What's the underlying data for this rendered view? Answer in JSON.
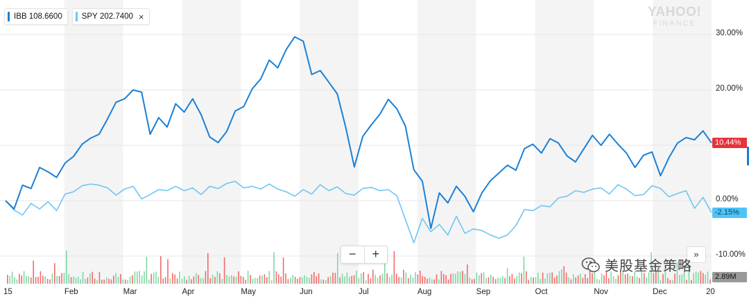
{
  "legend": [
    {
      "symbol": "IBB",
      "value": "108.6600",
      "color": "#1a7fd6"
    },
    {
      "symbol": "SPY",
      "value": "202.7400",
      "color": "#6ec6f2",
      "close": "×"
    }
  ],
  "watermark": {
    "line1": "YAHOO!",
    "line2": "FINANCE"
  },
  "controls": {
    "zoom_out": "−",
    "zoom_in": "+",
    "expand": "»"
  },
  "overlay_text": "美股基金策略",
  "chart_data": {
    "type": "line",
    "x_ticks": [
      "15",
      "Feb",
      "Mar",
      "Apr",
      "May",
      "Jun",
      "Jul",
      "Aug",
      "Sep",
      "Oct",
      "Nov",
      "Dec",
      "20"
    ],
    "y_ticks": [
      "30.00%",
      "20.00%",
      "10.00%",
      "0.00%",
      "-10.00%"
    ],
    "ylim": [
      -12,
      35
    ],
    "series": [
      {
        "name": "IBB",
        "color": "#1a7fd6",
        "last_label": "10.44%",
        "last_label_color": "#e8333c",
        "x": [
          0,
          3,
          6,
          9,
          12,
          15,
          18,
          21,
          24,
          27,
          30,
          33,
          36,
          39,
          42,
          45,
          48,
          51,
          54,
          57,
          60,
          63,
          66,
          69,
          72,
          75,
          78,
          81,
          84,
          87,
          90,
          93,
          96,
          99,
          102,
          105,
          108,
          111,
          114,
          117,
          120,
          123,
          126,
          129,
          132,
          135,
          138,
          141,
          144,
          147,
          150,
          153,
          156,
          159,
          162,
          165,
          168,
          171,
          174,
          177,
          180,
          183,
          186,
          189,
          192,
          195,
          198,
          201,
          204,
          207,
          210,
          213,
          216,
          219,
          222,
          225,
          228,
          231,
          234,
          237,
          240,
          243,
          246,
          249
        ],
        "y": [
          0,
          -1.5,
          2.8,
          2.2,
          6,
          5.2,
          4.2,
          6.8,
          8,
          10.2,
          11.3,
          12,
          14.8,
          17.8,
          18.4,
          20,
          19.6,
          12,
          15,
          13.3,
          17.5,
          16,
          18.4,
          15.5,
          11.5,
          10.5,
          12.5,
          16.2,
          17,
          20.2,
          22,
          25.4,
          24,
          27.3,
          29.6,
          28.8,
          22.8,
          23.5,
          21.4,
          19.3,
          13.2,
          6.1,
          11.6,
          13.7,
          15.6,
          18.3,
          16.6,
          13.5,
          5.6,
          3.5,
          -5,
          1.4,
          -0.4,
          2.6,
          0.8,
          -2,
          1.4,
          3.6,
          5,
          6.4,
          5.5,
          9.4,
          10.2,
          8.6,
          11.2,
          10.4,
          8.1,
          7,
          9.4,
          11.8,
          10,
          12,
          10.2,
          8.6,
          6,
          8.2,
          8.8,
          4.5,
          7.8,
          10.4,
          11.4,
          11,
          12.6,
          10.44
        ]
      },
      {
        "name": "SPY",
        "color": "#6ec6f2",
        "last_label": "-2.15%",
        "last_label_color": "#4fc3f7",
        "x": [
          0,
          3,
          6,
          9,
          12,
          15,
          18,
          21,
          24,
          27,
          30,
          33,
          36,
          39,
          42,
          45,
          48,
          51,
          54,
          57,
          60,
          63,
          66,
          69,
          72,
          75,
          78,
          81,
          84,
          87,
          90,
          93,
          96,
          99,
          102,
          105,
          108,
          111,
          114,
          117,
          120,
          123,
          126,
          129,
          132,
          135,
          138,
          141,
          144,
          147,
          150,
          153,
          156,
          159,
          162,
          165,
          168,
          171,
          174,
          177,
          180,
          183,
          186,
          189,
          192,
          195,
          198,
          201,
          204,
          207,
          210,
          213,
          216,
          219,
          222,
          225,
          228,
          231,
          234,
          237,
          240,
          243,
          246,
          249
        ],
        "y": [
          0,
          -1.7,
          -2.6,
          -0.5,
          -1.5,
          -0.2,
          -1.8,
          1.2,
          1.6,
          2.7,
          3,
          2.8,
          2.3,
          1,
          2.1,
          2.6,
          0.3,
          1.1,
          2,
          1.8,
          2.6,
          1.8,
          2.3,
          1.1,
          2.6,
          2.2,
          3.1,
          3.5,
          2.3,
          2.6,
          2.1,
          3,
          2.1,
          1.6,
          0.8,
          2,
          1.2,
          2.9,
          1.8,
          2.5,
          1.3,
          1,
          2.2,
          2.4,
          1.8,
          2,
          0.9,
          -3.4,
          -7.6,
          -3.2,
          -5.6,
          -4.3,
          -6.2,
          -2.8,
          -5.9,
          -5.1,
          -5.4,
          -6.2,
          -6.8,
          -6.2,
          -4.5,
          -1.6,
          -1.8,
          -0.9,
          -1.1,
          0.5,
          0.8,
          1.8,
          1.5,
          2.1,
          2.3,
          1.2,
          2.9,
          2.1,
          0.9,
          1.1,
          2.7,
          2.2,
          0.7,
          1.3,
          1.8,
          -1.4,
          0.6,
          -2.15
        ]
      }
    ],
    "volume": {
      "label": "2.89M",
      "up_color": "#7fd8a4",
      "down_color": "#f06b6b"
    }
  }
}
